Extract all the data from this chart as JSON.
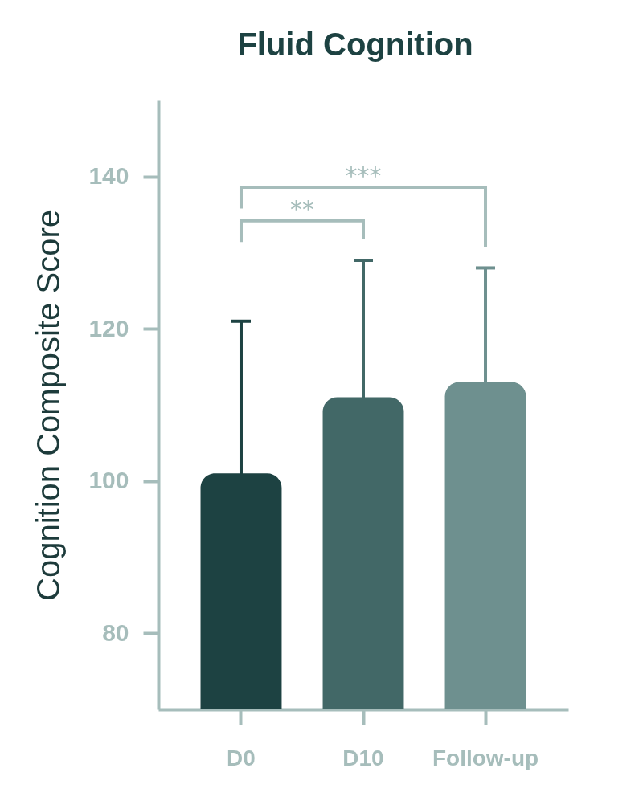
{
  "chart_data": {
    "type": "bar",
    "title": "Fluid Cognition",
    "ylabel": "Cognition Composite Score",
    "categories": [
      "D0",
      "D10",
      "Follow-up"
    ],
    "values": [
      101,
      111,
      113
    ],
    "colors": [
      "#1d4242",
      "#426867",
      "#6e908f"
    ],
    "errors": [
      20,
      18,
      15
    ],
    "ylim": [
      70,
      150
    ],
    "yticks": [
      80,
      100,
      120,
      140
    ],
    "annotations": [
      "**",
      "***"
    ]
  }
}
